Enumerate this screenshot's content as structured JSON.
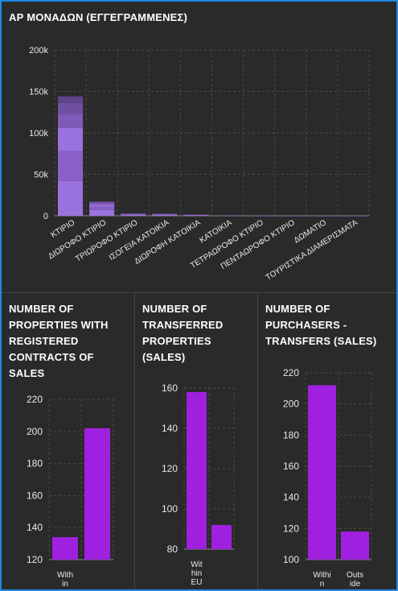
{
  "top_panel": {
    "title": "ΑΡ ΜΟΝΑΔΩΝ (ΕΓΓΕΓΡΑΜΜΕΝΕΣ)"
  },
  "bottom_panels": [
    {
      "title_lines": [
        "NUMBER OF",
        "PROPERTIES WITH",
        "REGISTERED",
        "CONTRACTS OF",
        "SALES"
      ]
    },
    {
      "title_lines": [
        "NUMBER OF",
        "TRANSFERRED",
        "PROPERTIES",
        "(SALES)"
      ]
    },
    {
      "title_lines": [
        "NUMBER OF",
        "PURCHASERS -",
        "TRANSFERS (SALES)"
      ]
    }
  ],
  "colors": {
    "background": "#2a2a2a",
    "frame_border": "#1e88e5",
    "bar_purple": "#a020e0",
    "stack_purple": "#8a60c8",
    "grid": "#4a4a4a",
    "text": "#e8e8e8"
  },
  "chart_data": [
    {
      "type": "bar",
      "stacked": true,
      "title": "ΑΡ ΜΟΝΑΔΩΝ (ΕΓΓΕΓΡΑΜΜΕΝΕΣ)",
      "categories": [
        "ΚΤΙΡΙΟ",
        "ΔΙΩΡΟΦΟ ΚΤΙΡΙΟ",
        "ΤΡΙΩΡΟΦΟ ΚΤΙΡΙΟ",
        "ΙΣΟΓΕΙΑ ΚΑΤΟΙΚΙΑ",
        "ΔΙΩΡΟΦΗ ΚΑΤΟΙΚΙΑ",
        "ΚΑΤΟΙΚΙΑ",
        "ΤΕΤΡΑΩΡΟΦΟ ΚΤΙΡΙΟ",
        "ΠΕΝΤΑΩΡΟΦΟ ΚΤΙΡΙΟ",
        "ΔΩΜΑΤΙΟ",
        "ΤΟΥΡΙΣΤΙΚΑ ΔΙΑΜΕΡΙΣΜΑΤΑ"
      ],
      "segments": [
        [
          42000,
          36000,
          28000,
          17000,
          13000,
          8000
        ],
        [
          7000,
          4000,
          2500,
          2500,
          1000
        ],
        [
          1200,
          800,
          500
        ],
        [
          1000,
          800,
          400
        ],
        [
          600,
          400,
          200
        ],
        [
          150
        ],
        [
          100
        ],
        [
          60
        ],
        [
          40
        ],
        [
          20
        ]
      ],
      "y_ticks": [
        "0",
        "50k",
        "100k",
        "150k",
        "200k"
      ],
      "ylim": [
        0,
        200000
      ],
      "grid": true
    },
    {
      "type": "bar",
      "title": "NUMBER OF PROPERTIES WITH REGISTERED CONTRACTS OF SALES",
      "categories": [
        "With in",
        ""
      ],
      "values": [
        134,
        202
      ],
      "y_ticks": [
        "120",
        "140",
        "160",
        "180",
        "200",
        "220"
      ],
      "ylim": [
        120,
        220
      ],
      "grid": true
    },
    {
      "type": "bar",
      "title": "NUMBER OF TRANSFERRED PROPERTIES (SALES)",
      "categories": [
        "Wit hin EU",
        ""
      ],
      "values": [
        158,
        92
      ],
      "y_ticks": [
        "80",
        "100",
        "120",
        "140",
        "160"
      ],
      "ylim": [
        80,
        160
      ],
      "grid": true
    },
    {
      "type": "bar",
      "title": "NUMBER OF PURCHASERS - TRANSFERS (SALES)",
      "categories": [
        "Withi n EU",
        "Outs ide"
      ],
      "values": [
        212,
        118
      ],
      "y_ticks": [
        "100",
        "120",
        "140",
        "160",
        "180",
        "200",
        "220"
      ],
      "ylim": [
        100,
        220
      ],
      "grid": true
    }
  ]
}
